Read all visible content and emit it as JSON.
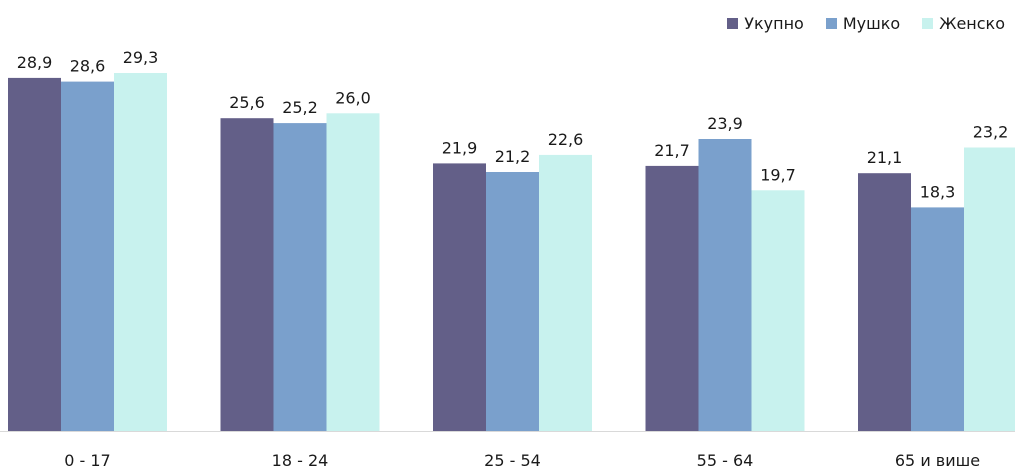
{
  "chart_data": {
    "type": "bar",
    "title": "",
    "xlabel": "",
    "ylabel": "",
    "categories": [
      "0 - 17",
      "18 - 24",
      "25 - 54",
      "55 - 64",
      "65 и више"
    ],
    "series": [
      {
        "name": "Укупно",
        "color": "#635f88",
        "values": [
          28.9,
          25.6,
          21.9,
          21.7,
          21.1
        ],
        "labels": [
          "28,9",
          "25,6",
          "21,9",
          "21,7",
          "21,1"
        ]
      },
      {
        "name": "Мушко",
        "color": "#7aa0cc",
        "values": [
          28.6,
          25.2,
          21.2,
          23.9,
          18.3
        ],
        "labels": [
          "28,6",
          "25,2",
          "21,2",
          "23,9",
          "18,3"
        ]
      },
      {
        "name": "Женско",
        "color": "#c8f2ee",
        "values": [
          29.3,
          26.0,
          22.6,
          19.7,
          23.2
        ],
        "labels": [
          "29,3",
          "26,0",
          "22,6",
          "19,7",
          "23,2"
        ]
      }
    ],
    "ylim": [
      0,
      29.3
    ],
    "grid": false,
    "legend": "top-right"
  }
}
